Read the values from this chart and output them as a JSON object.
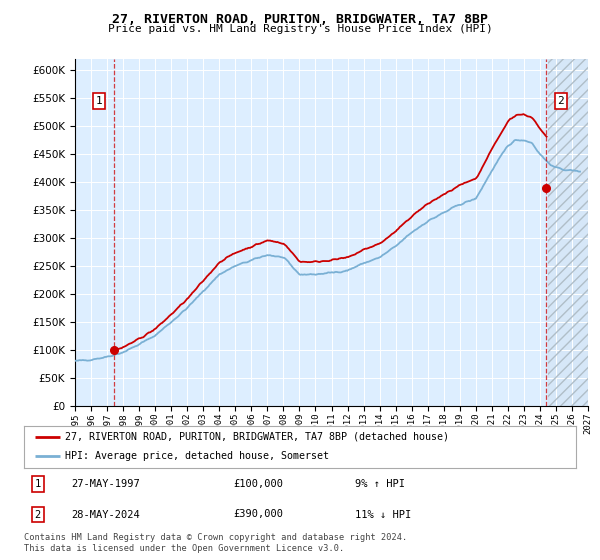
{
  "title": "27, RIVERTON ROAD, PURITON, BRIDGWATER, TA7 8BP",
  "subtitle": "Price paid vs. HM Land Registry's House Price Index (HPI)",
  "legend_line1": "27, RIVERTON ROAD, PURITON, BRIDGWATER, TA7 8BP (detached house)",
  "legend_line2": "HPI: Average price, detached house, Somerset",
  "annotation1_label": "1",
  "annotation1_date": "27-MAY-1997",
  "annotation1_price": "£100,000",
  "annotation1_hpi": "9% ↑ HPI",
  "annotation2_label": "2",
  "annotation2_date": "28-MAY-2024",
  "annotation2_price": "£390,000",
  "annotation2_hpi": "11% ↓ HPI",
  "footer": "Contains HM Land Registry data © Crown copyright and database right 2024.\nThis data is licensed under the Open Government Licence v3.0.",
  "price_color": "#cc0000",
  "hpi_color": "#7ab0d4",
  "bg_color": "#ddeeff",
  "ylim": [
    0,
    620000
  ],
  "yticks": [
    0,
    50000,
    100000,
    150000,
    200000,
    250000,
    300000,
    350000,
    400000,
    450000,
    500000,
    550000,
    600000
  ],
  "sale1_x": 1997.41,
  "sale1_y": 100000,
  "sale2_x": 2024.41,
  "sale2_y": 390000,
  "xmin": 1995.0,
  "xmax": 2027.0,
  "hatch_start": 2024.5
}
